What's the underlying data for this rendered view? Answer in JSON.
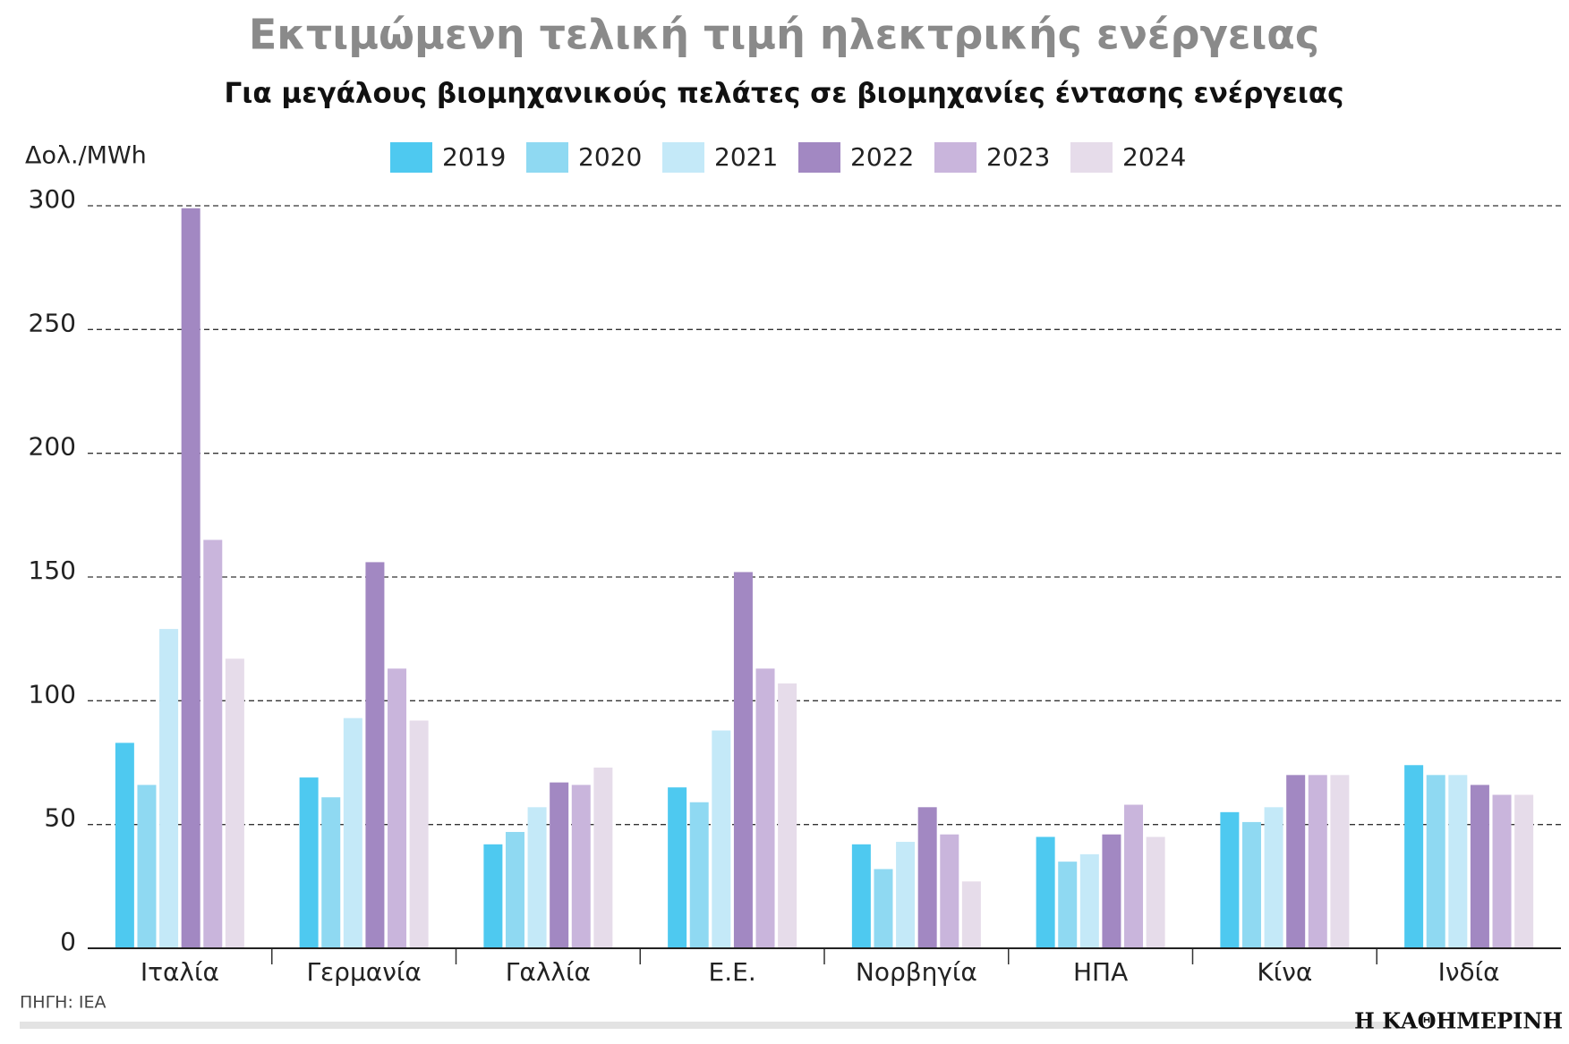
{
  "chart_data": {
    "type": "bar",
    "title": "Εκτιμώμενη τελική τιμή ηλεκτρικής ενέργειας",
    "subtitle": "Για μεγάλους βιομηχανικούς πελάτες σε βιομηχανίες έντασης ενέργειας",
    "ylabel": "Δολ./MWh",
    "categories": [
      "Ιταλία",
      "Γερμανία",
      "Γαλλία",
      "Ε.Ε.",
      "Νορβηγία",
      "ΗΠΑ",
      "Κίνα",
      "Ινδία"
    ],
    "series": [
      {
        "name": "2019",
        "color": "#4ec9f0",
        "values": [
          83,
          69,
          42,
          65,
          42,
          45,
          55,
          74
        ]
      },
      {
        "name": "2020",
        "color": "#8fd9f2",
        "values": [
          66,
          61,
          47,
          59,
          32,
          35,
          51,
          70
        ]
      },
      {
        "name": "2021",
        "color": "#c4e9f8",
        "values": [
          129,
          93,
          57,
          88,
          43,
          38,
          57,
          70
        ]
      },
      {
        "name": "2022",
        "color": "#a288c2",
        "values": [
          299,
          156,
          67,
          152,
          57,
          46,
          70,
          66
        ]
      },
      {
        "name": "2023",
        "color": "#c9b5dc",
        "values": [
          165,
          113,
          66,
          113,
          46,
          58,
          70,
          62
        ]
      },
      {
        "name": "2024",
        "color": "#e6dcea",
        "values": [
          117,
          92,
          73,
          107,
          27,
          45,
          70,
          62
        ]
      }
    ],
    "ylim": [
      0,
      300
    ],
    "yticks": [
      0,
      50,
      100,
      150,
      200,
      250,
      300
    ],
    "grid": true
  },
  "footer": {
    "source": "ΠΗΓΗ: IEA",
    "brand": "Η ΚΑΘΗΜΕΡΙΝΗ"
  }
}
